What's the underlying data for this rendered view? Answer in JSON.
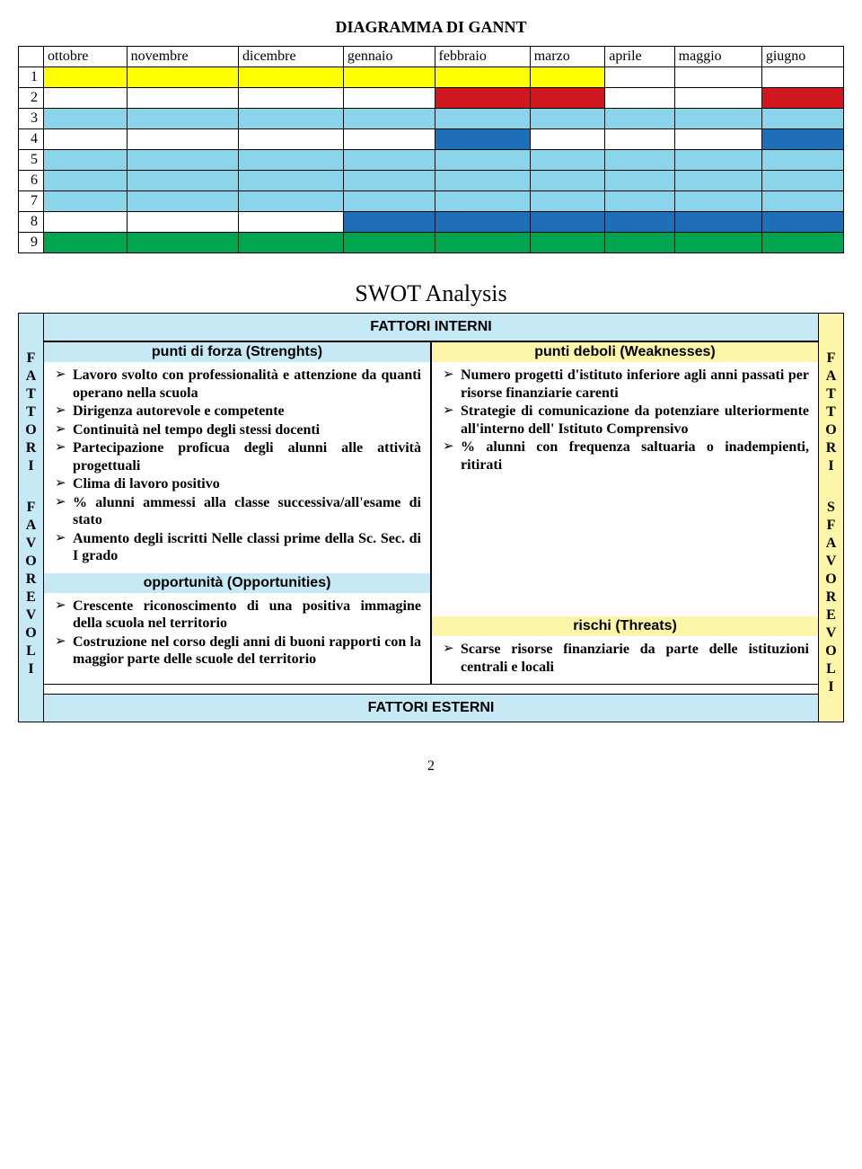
{
  "gantt": {
    "title": "DIAGRAMMA DI GANNT",
    "months": [
      "ottobre",
      "novembre",
      "dicembre",
      "gennaio",
      "febbraio",
      "marzo",
      "aprile",
      "maggio",
      "giugno"
    ],
    "row_numbers": [
      "1",
      "2",
      "3",
      "4",
      "5",
      "6",
      "7",
      "8",
      "9"
    ],
    "colors": {
      "yellow": "#ffff00",
      "red": "#ce181e",
      "cyan": "#8bd5ea",
      "blue": "#1e6eb8",
      "green": "#00a54f",
      "white": "#ffffff"
    },
    "cells": [
      [
        "yellow",
        "yellow",
        "yellow",
        "yellow",
        "yellow",
        "yellow",
        "white",
        "white",
        "white"
      ],
      [
        "white",
        "white",
        "white",
        "white",
        "red",
        "red",
        "white",
        "white",
        "red"
      ],
      [
        "cyan",
        "cyan",
        "cyan",
        "cyan",
        "cyan",
        "cyan",
        "cyan",
        "cyan",
        "cyan"
      ],
      [
        "white",
        "white",
        "white",
        "white",
        "blue",
        "white",
        "white",
        "white",
        "blue"
      ],
      [
        "cyan",
        "cyan",
        "cyan",
        "cyan",
        "cyan",
        "cyan",
        "cyan",
        "cyan",
        "cyan"
      ],
      [
        "cyan",
        "cyan",
        "cyan",
        "cyan",
        "cyan",
        "cyan",
        "cyan",
        "cyan",
        "cyan"
      ],
      [
        "cyan",
        "cyan",
        "cyan",
        "cyan",
        "cyan",
        "cyan",
        "cyan",
        "cyan",
        "cyan"
      ],
      [
        "white",
        "white",
        "white",
        "blue",
        "blue",
        "blue",
        "blue",
        "blue",
        "blue"
      ],
      [
        "green",
        "green",
        "green",
        "green",
        "green",
        "green",
        "green",
        "green",
        "green"
      ]
    ]
  },
  "swot": {
    "title": "SWOT Analysis",
    "top_band": "FATTORI INTERNI",
    "bottom_band": "FATTORI ESTERNI",
    "side_left": {
      "top": "FATTORI",
      "bottom": "FAVOREVOLI",
      "bg": "#c6e9f6"
    },
    "side_right": {
      "top": "FATTORI",
      "bottom": "SFAVOREVOLI",
      "bg": "#fdf6a9"
    },
    "band_bg": "#c6e9f6",
    "sub_bg_left": "#c6e9f6",
    "sub_bg_right": "#fdf6a9",
    "quadrants": {
      "strengths": {
        "label": "punti di forza  (Strenghts)",
        "items": [
          "Lavoro svolto con professionalità e attenzione da quanti operano nella scuola",
          "Dirigenza autorevole e competente",
          "Continuità nel tempo degli stessi docenti",
          "Partecipazione proficua degli alunni alle attività progettuali",
          "Clima di lavoro positivo",
          "% alunni ammessi alla classe successiva/all'esame di stato",
          "Aumento degli iscritti Nelle classi prime della Sc. Sec. di I grado"
        ]
      },
      "weaknesses": {
        "label": "punti deboli (Weaknesses)",
        "items": [
          "Numero progetti d'istituto inferiore agli anni passati per risorse finanziarie carenti",
          "Strategie di comunicazione da potenziare ulteriormente all'interno dell' Istituto Comprensivo",
          "% alunni con frequenza saltuaria o inadempienti, ritirati"
        ]
      },
      "opportunities": {
        "label": "opportunità (Opportunities)",
        "items": [
          "Crescente riconoscimento di una positiva immagine della scuola nel territorio",
          "Costruzione  nel corso degli anni di buoni rapporti con la maggior parte delle scuole del territorio"
        ]
      },
      "threats": {
        "label": "rischi (Threats)",
        "items": [
          "Scarse risorse finanziarie  da parte delle istituzioni centrali e locali"
        ]
      }
    }
  },
  "page_number": "2"
}
